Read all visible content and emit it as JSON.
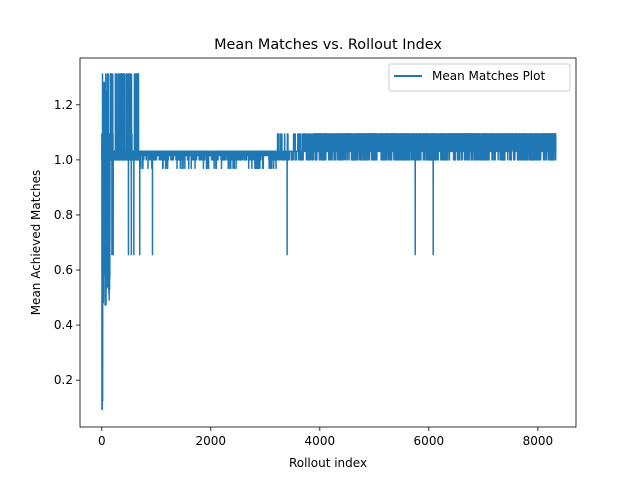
{
  "chart_data": {
    "type": "line",
    "title": "Mean Matches vs. Rollout Index",
    "xlabel": "Rollout index",
    "ylabel": "Mean Achieved Matches",
    "xlim": [
      -400,
      8700
    ],
    "ylim": [
      0.03,
      1.37
    ],
    "xticks": [
      0,
      2000,
      4000,
      6000,
      8000
    ],
    "yticks": [
      0.2,
      0.4,
      0.6,
      0.8,
      1.0,
      1.2
    ],
    "xtick_labels": [
      "0",
      "2000",
      "4000",
      "6000",
      "8000"
    ],
    "ytick_labels": [
      "0.2",
      "0.4",
      "0.6",
      "0.8",
      "1.0",
      "1.2"
    ],
    "legend_position": "top-right",
    "grid": false,
    "series": [
      {
        "name": "Mean Matches Plot",
        "color": "#1f77b4",
        "n_points": 8330,
        "levels": [
          0.656,
          0.969,
          1.0,
          1.016,
          1.031,
          1.047,
          1.094,
          1.312
        ],
        "segments": [
          {
            "x_start": 0,
            "x_end": 150,
            "y_min": 0.094,
            "y_max": 1.281
          },
          {
            "x_start": 100,
            "x_end": 700,
            "y_min": 0.656,
            "y_max": 1.312
          },
          {
            "x_start": 700,
            "x_end": 3200,
            "y_min": 0.969,
            "y_max": 1.031
          },
          {
            "x_start": 3200,
            "x_end": 3900,
            "y_min": 1.0,
            "y_max": 1.094
          },
          {
            "x_start": 3900,
            "x_end": 8330,
            "y_min": 1.0,
            "y_max": 1.094
          }
        ],
        "dips": [
          {
            "x": 930,
            "y": 0.656
          },
          {
            "x": 3400,
            "y": 0.656
          },
          {
            "x": 5750,
            "y": 0.656
          },
          {
            "x": 6080,
            "y": 0.656
          }
        ]
      }
    ]
  }
}
